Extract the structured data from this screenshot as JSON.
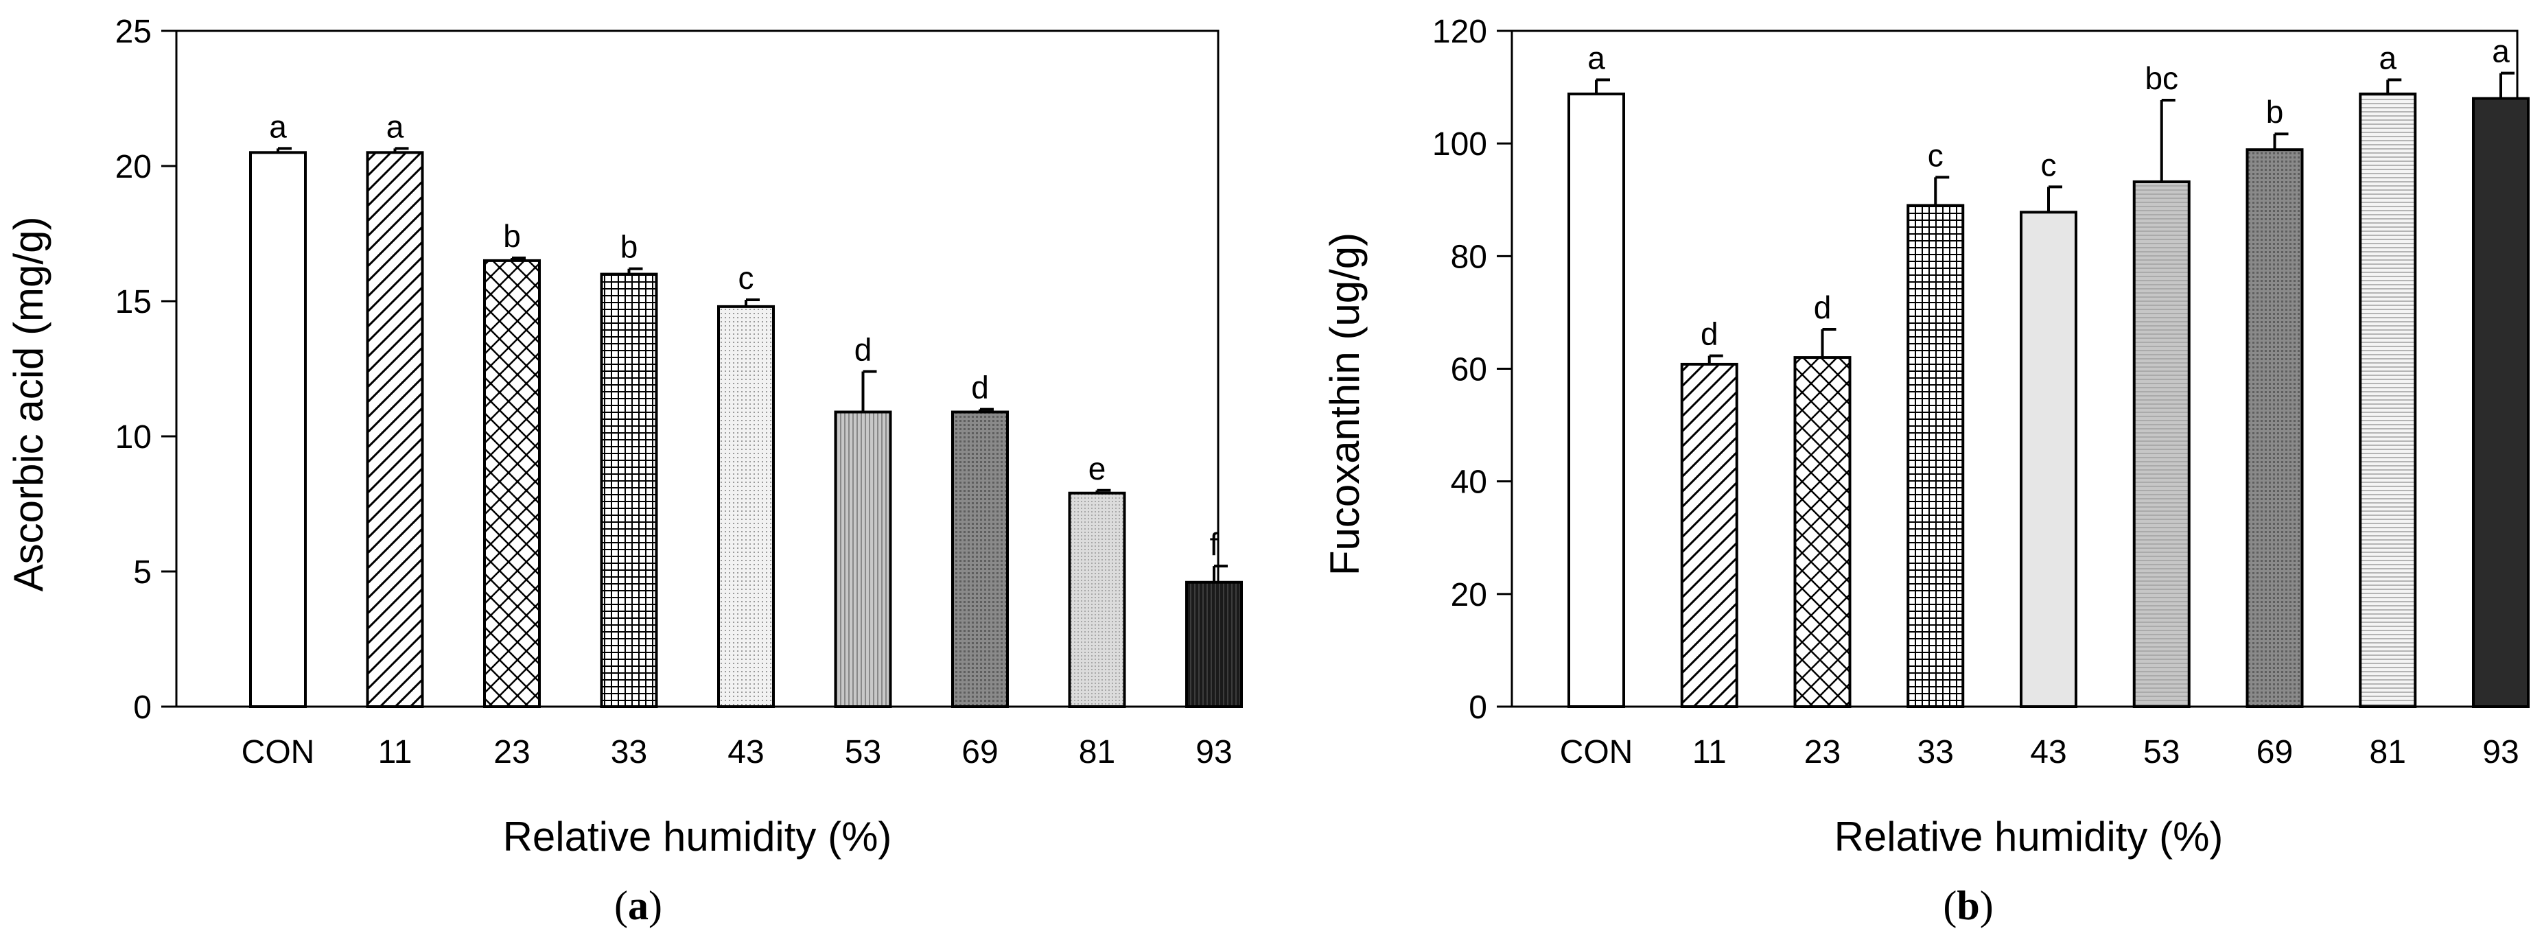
{
  "chart_data": [
    {
      "type": "bar",
      "panel_label": "a",
      "xlabel": "Relative humidity (%)",
      "ylabel": "Ascorbic acid (mg/g)",
      "ylim": [
        0,
        25
      ],
      "yticks": [
        0,
        5,
        10,
        15,
        20,
        25
      ],
      "categories": [
        "CON",
        "11",
        "23",
        "33",
        "43",
        "53",
        "69",
        "81",
        "93"
      ],
      "values": [
        20.5,
        20.5,
        16.5,
        16.0,
        14.8,
        10.9,
        10.9,
        7.9,
        4.6
      ],
      "errors": [
        0.15,
        0.15,
        0.1,
        0.2,
        0.25,
        1.5,
        0.1,
        0.1,
        0.6
      ],
      "labels": [
        "a",
        "a",
        "b",
        "b",
        "c",
        "d",
        "d",
        "e",
        "f"
      ],
      "patterns": [
        "white",
        "diag",
        "cross",
        "grid",
        "dots-light",
        "vlines",
        "dots-mid",
        "dots-fine",
        "black"
      ]
    },
    {
      "type": "bar",
      "panel_label": "b",
      "xlabel": "Relative humidity (%)",
      "ylabel": "Fucoxanthin (ug/g)",
      "ylim": [
        0,
        120
      ],
      "yticks": [
        0,
        20,
        40,
        60,
        80,
        100,
        120
      ],
      "categories": [
        "CON",
        "11",
        "23",
        "33",
        "43",
        "53",
        "69",
        "81",
        "93"
      ],
      "values": [
        108.8,
        60.8,
        62.0,
        89.0,
        87.8,
        93.2,
        98.9,
        108.8,
        108.0
      ],
      "errors": [
        2.5,
        1.5,
        5.0,
        5.0,
        4.5,
        14.5,
        2.8,
        2.5,
        4.5
      ],
      "labels": [
        "a",
        "d",
        "d",
        "c",
        "c",
        "bc",
        "b",
        "a",
        "a"
      ],
      "patterns": [
        "white",
        "diag",
        "cross",
        "grid",
        "light",
        "hlines-grey",
        "dots-mid",
        "hlines-fine",
        "dark"
      ]
    }
  ]
}
